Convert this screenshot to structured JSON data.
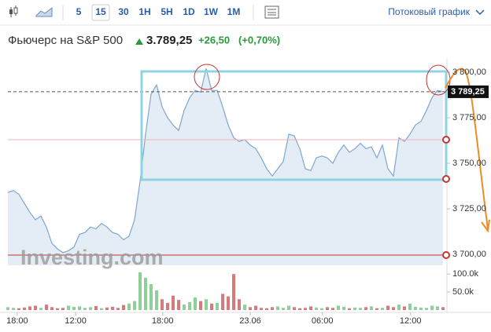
{
  "toolbar": {
    "intervals": [
      "5",
      "15",
      "30",
      "1H",
      "5H",
      "1D",
      "1W",
      "1M"
    ],
    "active_interval_index": 1,
    "stream_label": "Потоковый график"
  },
  "header": {
    "title": "Фьючерс на S&P 500",
    "price": "3.789,25",
    "change": "+26,50",
    "change_pct": "(+0,70%)"
  },
  "chart_data": {
    "type": "area",
    "watermark": "Investing.com",
    "x": [
      0,
      1,
      2,
      3,
      4,
      5,
      6,
      7,
      8,
      9,
      10,
      11,
      12,
      13,
      14,
      15,
      16,
      17,
      18,
      19,
      20,
      21,
      22,
      23,
      24,
      25,
      26,
      27,
      28,
      29,
      30,
      31,
      32,
      33,
      34,
      35,
      36,
      37,
      38,
      39,
      40,
      41,
      42,
      43,
      44,
      45,
      46,
      47,
      48,
      49,
      50,
      51,
      52,
      53,
      54,
      55,
      56,
      57,
      58,
      59,
      60,
      61,
      62,
      63,
      64,
      65,
      66,
      67,
      68,
      69,
      70,
      71,
      72,
      73,
      74,
      75,
      76,
      77,
      78,
      79
    ],
    "xlim": [
      0,
      79
    ],
    "xticks": [
      {
        "value": 1.7,
        "label": "18:00"
      },
      {
        "value": 12.3,
        "label": "12:00"
      },
      {
        "value": 28.1,
        "label": "18:00"
      },
      {
        "value": 44,
        "label": "23.06"
      },
      {
        "value": 57.1,
        "label": "06:00"
      },
      {
        "value": 73.1,
        "label": "12:00"
      }
    ],
    "series": [
      {
        "name": "S&P 500",
        "color": "#7fa6cc",
        "fill": "#e4ecf5",
        "values": [
          3734,
          3735,
          3733,
          3728,
          3723,
          3719,
          3721,
          3715,
          3706,
          3703,
          3701,
          3702,
          3704,
          3711,
          3712,
          3715,
          3714,
          3717,
          3715,
          3712,
          3711,
          3708,
          3710,
          3719,
          3740,
          3766,
          3788,
          3793,
          3781,
          3775,
          3771,
          3768,
          3779,
          3786,
          3790,
          3789,
          3802,
          3790,
          3790,
          3781,
          3771,
          3764,
          3762,
          3763,
          3760,
          3758,
          3753,
          3747,
          3743,
          3747,
          3751,
          3766,
          3765,
          3758,
          3747,
          3746,
          3753,
          3754,
          3753,
          3750,
          3756,
          3760,
          3756,
          3758,
          3761,
          3758,
          3759,
          3753,
          3760,
          3747,
          3743,
          3764,
          3762,
          3766,
          3771,
          3773,
          3779,
          3786,
          3790,
          3789.25
        ]
      }
    ],
    "ylim": [
      3694,
      3803
    ],
    "yticks": [
      {
        "value": 3700,
        "label": "3 700,00"
      },
      {
        "value": 3725,
        "label": "3 725,00"
      },
      {
        "value": 3750,
        "label": "3 750,00"
      },
      {
        "value": 3775,
        "label": "3 775,00"
      },
      {
        "value": 3800,
        "label": "3 800,00"
      }
    ],
    "current_price": {
      "value": 3789.25,
      "label": "3 789,25"
    },
    "volume": {
      "up_color": "#8fcf98",
      "down_color": "#d87a7a",
      "ylim": [
        0,
        120000
      ],
      "yticks": [
        {
          "value": 50000,
          "label": "50.0k"
        },
        {
          "value": 100000,
          "label": "100.0k"
        }
      ],
      "values": [
        8000,
        6000,
        5000,
        7000,
        10000,
        12000,
        6000,
        15000,
        8000,
        5000,
        6000,
        12000,
        9000,
        10000,
        6000,
        8000,
        11000,
        5000,
        7000,
        9000,
        6000,
        14000,
        18000,
        25000,
        105000,
        90000,
        72000,
        55000,
        30000,
        20000,
        40000,
        28000,
        15000,
        22000,
        35000,
        25000,
        30000,
        18000,
        20000,
        45000,
        38000,
        100000,
        30000,
        15000,
        8000,
        12000,
        6000,
        5000,
        8000,
        10000,
        6000,
        12000,
        8000,
        5000,
        6000,
        10000,
        7000,
        5000,
        8000,
        6000,
        12000,
        9000,
        5000,
        7000,
        6000,
        8000,
        10000,
        5000,
        6000,
        12000,
        8000,
        15000,
        10000,
        18000,
        9000,
        7000,
        6000,
        12000,
        10000,
        8000
      ]
    }
  }
}
